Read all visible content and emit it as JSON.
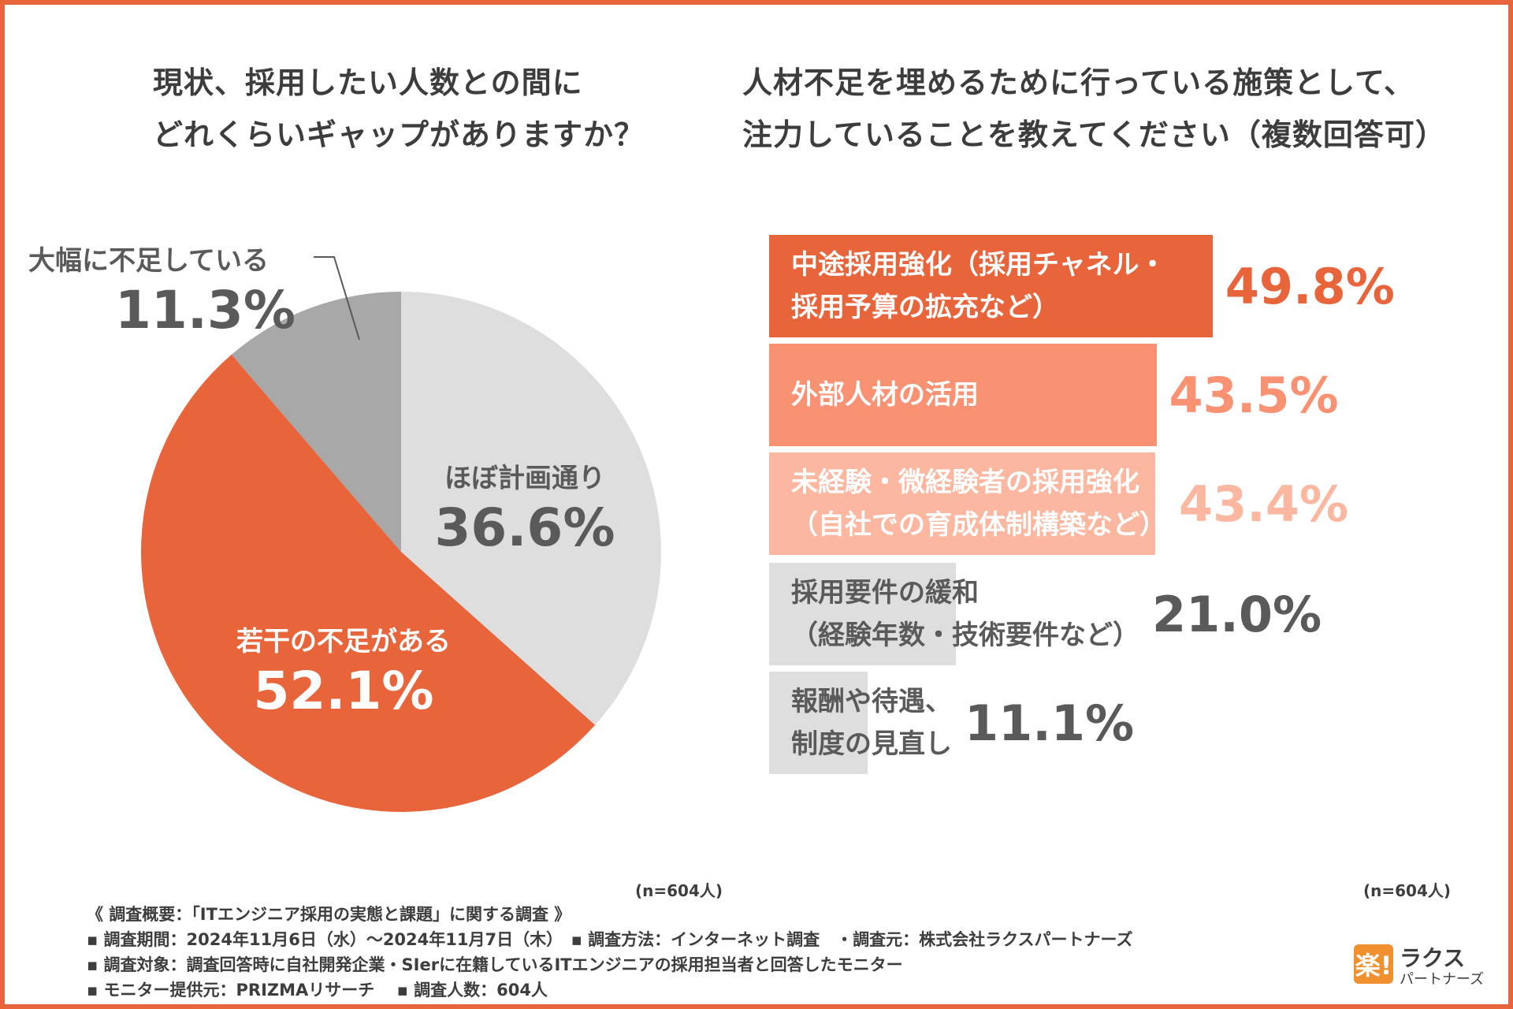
{
  "colors": {
    "border": "#e8643a",
    "orange": "#e8643a",
    "salmon": "#f89272",
    "peach": "#fbb79f",
    "gray_dark": "#a8a8a8",
    "gray_light": "#dedede",
    "text_dark": "#5a5a5a"
  },
  "left_title": {
    "line1": "現状、採用したい人数との間に",
    "line2": "どれくらいギャップがありますか？"
  },
  "right_title": {
    "line1": "人材不足を埋めるために行っている施策として、",
    "line2": "注力していることを教えてください（複数回答可）"
  },
  "chart_data": [
    {
      "type": "pie",
      "title": "現状、採用したい人数との間にどれくらいギャップがありますか？",
      "slices": [
        {
          "label": "ほぼ計画通り",
          "value": 36.6,
          "value_text": "36.6%",
          "color": "#dedede"
        },
        {
          "label": "若干の不足がある",
          "value": 52.1,
          "value_text": "52.1%",
          "color": "#e8643a"
        },
        {
          "label": "大幅に不足している",
          "value": 11.3,
          "value_text": "11.3%",
          "color": "#a8a8a8"
        }
      ],
      "note": "(n=604人)"
    },
    {
      "type": "bar",
      "orientation": "horizontal",
      "title": "人材不足を埋めるために行っている施策として、注力していることを教えてください（複数回答可）",
      "xlim": [
        0,
        55
      ],
      "bars": [
        {
          "label_lines": [
            "中途採用強化（採用チャネル・",
            "採用予算の拡充など）"
          ],
          "value": 49.8,
          "value_text": "49.8%",
          "color": "#e8643a",
          "text_color": "#ffffff",
          "value_color": "#e8643a"
        },
        {
          "label_lines": [
            "外部人材の活用"
          ],
          "value": 43.5,
          "value_text": "43.5%",
          "color": "#f89272",
          "text_color": "#ffffff",
          "value_color": "#f89272"
        },
        {
          "label_lines": [
            "未経験・微経験者の採用強化",
            "（自社での育成体制構築など）"
          ],
          "value": 43.4,
          "value_text": "43.4%",
          "color": "#fbb79f",
          "text_color": "#ffffff",
          "value_color": "#fbb79f"
        },
        {
          "label_lines": [
            "採用要件の緩和",
            "（経験年数・技術要件など）"
          ],
          "value": 21.0,
          "value_text": "21.0%",
          "color": "#dedede",
          "text_color": "#5a5a5a",
          "value_color": "#5a5a5a"
        },
        {
          "label_lines": [
            "報酬や待遇、",
            "制度の見直し"
          ],
          "value": 11.1,
          "value_text": "11.1%",
          "color": "#dedede",
          "text_color": "#5a5a5a",
          "value_color": "#5a5a5a"
        }
      ],
      "note": "(n=604人)"
    }
  ],
  "footer": {
    "line1": "《 調査概要：「ITエンジニア採用の実態と課題」に関する調査 》",
    "line2": "▪ 調査期間：2024年11月6日（水）～2024年11月7日（木）　▪ 調査方法：インターネット調査　・調査元：株式会社ラクスパートナーズ",
    "line3": "▪ 調査対象：調査回答時に自社開発企業・SIerに在籍しているITエンジニアの採用担当者と回答したモニター",
    "line4": "▪ モニター提供元：PRIZMAリサーチ　 ▪ 調査人数：604人"
  },
  "logo": {
    "mark": "楽!",
    "name": "ラクス",
    "sub": "パートナーズ"
  }
}
